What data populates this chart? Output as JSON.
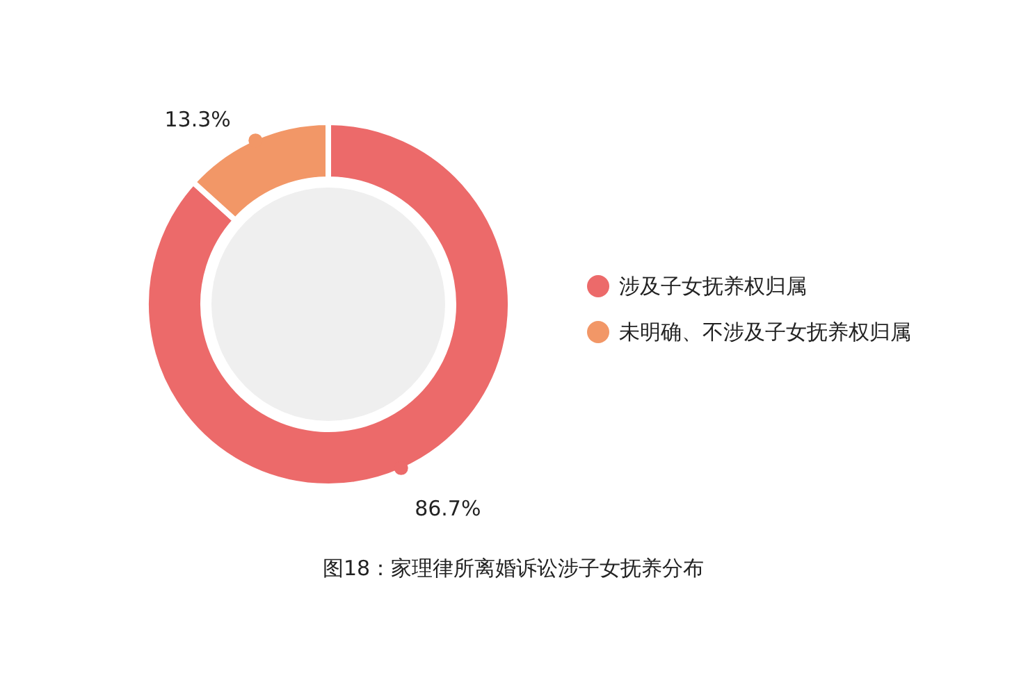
{
  "chart_data": {
    "type": "donut",
    "title": "图18：家理律所离婚诉讼涉子女抚养分布",
    "categories": [
      "涉及子女抚养权归属",
      "未明确、不涉及子女抚养权归属"
    ],
    "values": [
      86.7,
      13.3
    ],
    "colors": [
      "#ec6a6a",
      "#f29767"
    ],
    "value_labels": [
      "86.7%",
      "13.3%"
    ],
    "legend": "right"
  }
}
